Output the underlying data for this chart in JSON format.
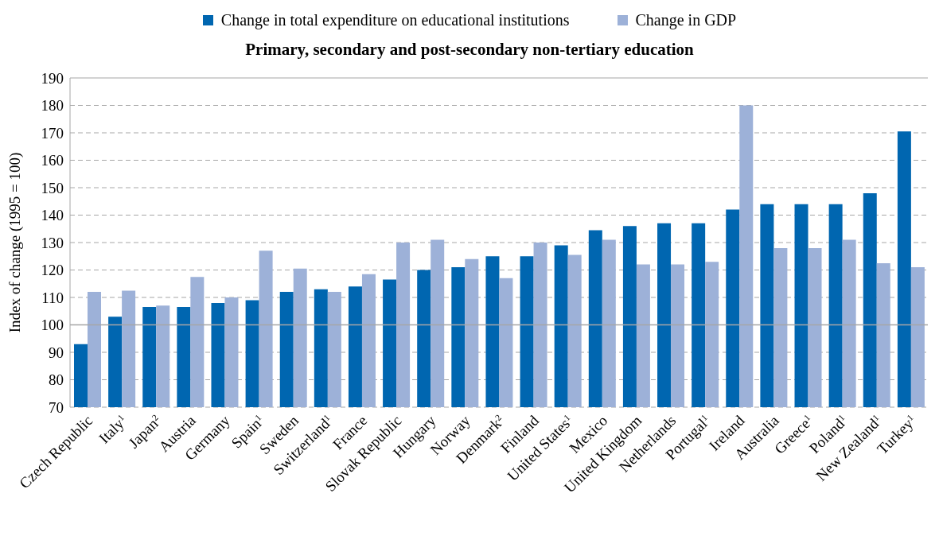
{
  "chart_data": {
    "type": "bar",
    "title": "Primary, secondary and post-secondary non-tertiary education",
    "ylabel": "Index of change (1995 = 100)",
    "categories": [
      "Czech Republic",
      "Italy$^{1}$",
      "Japan$^{2}$",
      "Austria",
      "Germany",
      "Spain$^{1}$",
      "Sweden",
      "Switzerland$^{1}$",
      "France",
      "Slovak Republic",
      "Hungary",
      "Norway",
      "Denmark$^{2}$",
      "Finland",
      "United States$^{1}$",
      "Mexico",
      "United Kingdom",
      "Netherlands",
      "Portugal$^{1}$",
      "Ireland",
      "Australia",
      "Greece$^{1}$",
      "Poland$^{1}$",
      "New Zealand$^{1}$",
      "Turkey$^{1}$"
    ],
    "series": [
      {
        "name": "Change in total expenditure on educational institutions",
        "color": "#0066b0",
        "values": [
          93,
          103,
          106.5,
          106.5,
          108,
          109,
          112,
          113,
          114,
          116.5,
          120,
          121,
          125,
          125,
          129,
          134.5,
          136,
          137,
          137,
          142,
          144,
          144,
          144,
          148,
          170.5
        ]
      },
      {
        "name": "Change in GDP",
        "color": "#9db1d8",
        "values": [
          112,
          112.5,
          107,
          117.5,
          110,
          127,
          120.5,
          112,
          118.5,
          130,
          131,
          124,
          117,
          130,
          125.5,
          131,
          122,
          122,
          123,
          180,
          128,
          128,
          131,
          122.5,
          121
        ]
      }
    ],
    "ylim": [
      70,
      190
    ],
    "yticks": [
      70,
      80,
      90,
      100,
      110,
      120,
      130,
      140,
      150,
      160,
      170,
      180,
      190
    ],
    "grid": "y",
    "legend": "top",
    "ref_lines": [
      {
        "axis": "y",
        "value": 100,
        "color": "#a6a6a6"
      }
    ]
  }
}
